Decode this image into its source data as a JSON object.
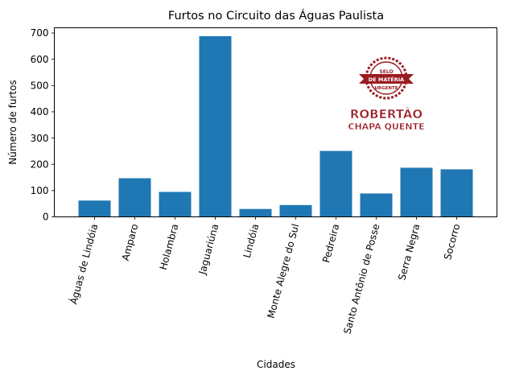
{
  "chart_data": {
    "type": "bar",
    "title": "Furtos no Circuito das Águas Paulista",
    "xlabel": "Cidades",
    "ylabel": "Número de furtos",
    "categories": [
      "Águas de Lindóia",
      "Amparo",
      "Holambra",
      "Jaguariúna",
      "Lindóia",
      "Monte Alegre do Sul",
      "Pedreira",
      "Santo Antônio de Posse",
      "Serra Negra",
      "Socorro"
    ],
    "values": [
      62,
      147,
      95,
      688,
      30,
      45,
      251,
      89,
      187,
      181
    ],
    "ylim": [
      0,
      720
    ],
    "yticks": [
      0,
      100,
      200,
      300,
      400,
      500,
      600,
      700
    ],
    "grid": false,
    "legend": "none",
    "bar_color": "#1f77b4"
  },
  "watermark": {
    "seal_top": "SELO",
    "seal_ribbon": "DE MATÉRIA",
    "seal_bottom": "URGENTE",
    "line1": "ROBERTÃO",
    "line2": "CHAPA QUENTE",
    "color": "#9b1c23"
  }
}
